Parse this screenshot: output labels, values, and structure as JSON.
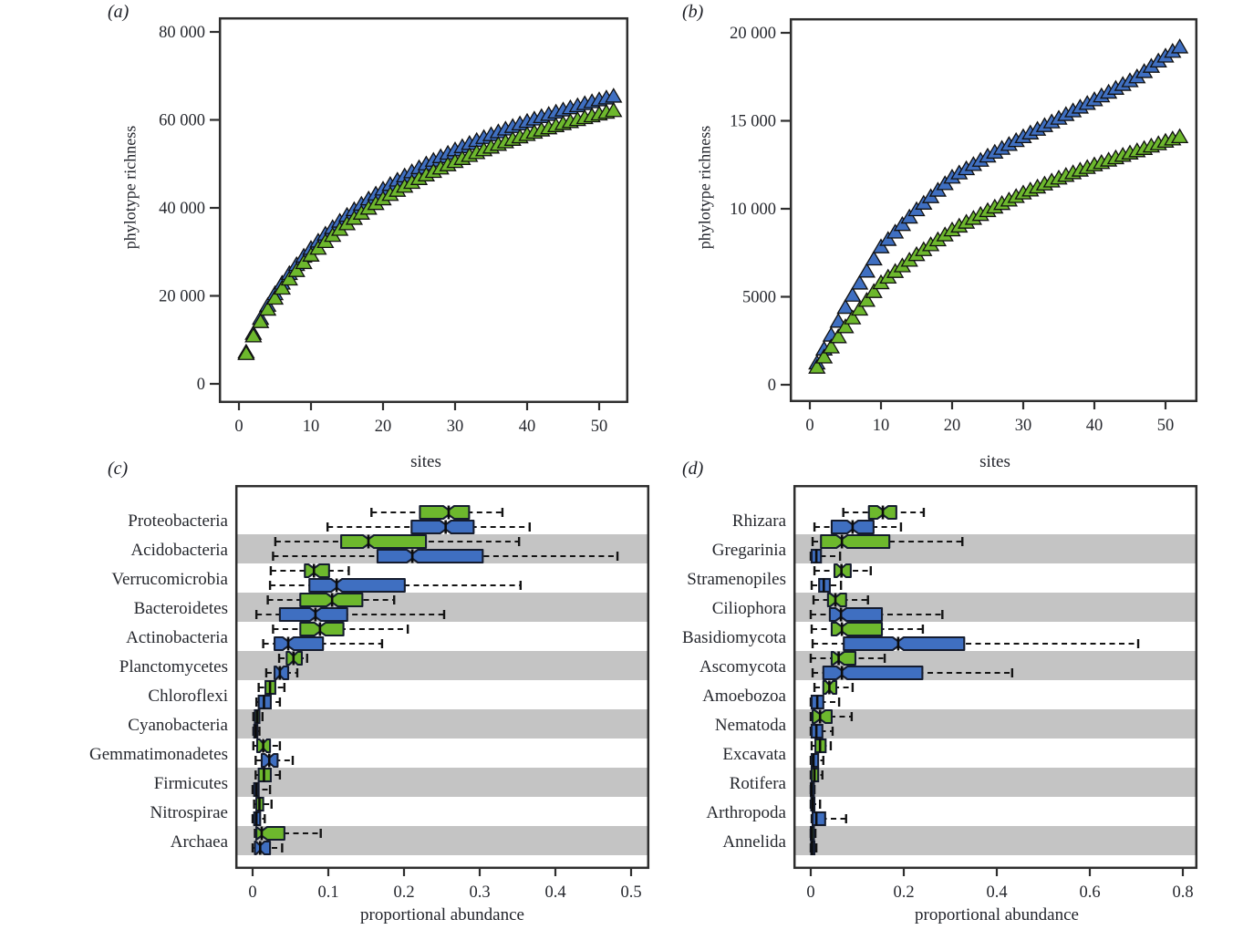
{
  "figure": {
    "background": "#ffffff",
    "colors": {
      "blue_fill": "#3f6fc1",
      "green_fill": "#6db station82d",
      "green_fill_fixed": "#6db82d",
      "stroke_dark": "#151c2e",
      "whisker": "#141414",
      "band_gray": "#c4c4c4",
      "frame": "#2e2e2e"
    }
  },
  "chart_data": [
    {
      "id": "a",
      "type": "scatter",
      "marker": "triangle",
      "panel_label": "(a)",
      "xlabel": "sites",
      "ylabel": "phylotype richness",
      "xlim": [
        0,
        56
      ],
      "ylim": [
        0,
        87000
      ],
      "x_ticks": [
        {
          "v": 0,
          "label": "0"
        },
        {
          "v": 10,
          "label": "10"
        },
        {
          "v": 20,
          "label": "20"
        },
        {
          "v": 30,
          "label": "30"
        },
        {
          "v": 40,
          "label": "40"
        },
        {
          "v": 50,
          "label": "50"
        }
      ],
      "y_ticks": [
        {
          "v": 0,
          "label": "0"
        },
        {
          "v": 20000,
          "label": "20 000"
        },
        {
          "v": 40000,
          "label": "40 000"
        },
        {
          "v": 60000,
          "label": "60 000"
        },
        {
          "v": 80000,
          "label": "80 000"
        }
      ],
      "x_start": 1,
      "series": [
        {
          "name": "blue",
          "color": "#3f6fc1",
          "y": [
            7250,
            11470,
            14910,
            17870,
            20500,
            22900,
            25090,
            27120,
            29030,
            30800,
            32450,
            34050,
            35530,
            36980,
            38320,
            39610,
            40840,
            42040,
            43160,
            44270,
            45320,
            46320,
            47280,
            48220,
            49130,
            50000,
            50830,
            51640,
            52430,
            53200,
            53930,
            54650,
            55340,
            56010,
            56650,
            57300,
            57920,
            58510,
            59100,
            59670,
            60210,
            60750,
            61260,
            61780,
            62270,
            62760,
            63230,
            63700,
            64140,
            64570,
            64990,
            65400
          ]
        },
        {
          "name": "green",
          "color": "#6db82d",
          "y": [
            6890,
            10900,
            14160,
            16980,
            19480,
            21760,
            23840,
            25760,
            27580,
            29260,
            30830,
            32350,
            33750,
            35130,
            36400,
            37630,
            38800,
            39940,
            41000,
            42060,
            43050,
            44000,
            44920,
            45810,
            46670,
            47500,
            48290,
            49060,
            49810,
            50540,
            51230,
            51920,
            52570,
            53210,
            53820,
            54440,
            55020,
            55580,
            56150,
            56690,
            57200,
            57710,
            58200,
            58690,
            59160,
            59620,
            60070,
            60520,
            60930,
            61340,
            61740,
            62130
          ]
        }
      ]
    },
    {
      "id": "b",
      "type": "scatter",
      "marker": "triangle",
      "panel_label": "(b)",
      "xlabel": "sites",
      "ylabel": "phylotype richness",
      "xlim": [
        0,
        56
      ],
      "ylim": [
        0,
        21000
      ],
      "x_ticks": [
        {
          "v": 0,
          "label": "0"
        },
        {
          "v": 10,
          "label": "10"
        },
        {
          "v": 20,
          "label": "20"
        },
        {
          "v": 30,
          "label": "30"
        },
        {
          "v": 40,
          "label": "40"
        },
        {
          "v": 50,
          "label": "50"
        }
      ],
      "y_ticks": [
        {
          "v": 0,
          "label": "0"
        },
        {
          "v": 5000,
          "label": "5000"
        },
        {
          "v": 10000,
          "label": "10 000"
        },
        {
          "v": 15000,
          "label": "15 000"
        },
        {
          "v": 20000,
          "label": "20 000"
        }
      ],
      "x_start": 1,
      "series": [
        {
          "name": "blue",
          "color": "#3f6fc1",
          "y": [
            1240,
            2030,
            2820,
            3610,
            4400,
            5090,
            5780,
            6460,
            7150,
            7840,
            8260,
            8680,
            9110,
            9530,
            9950,
            10320,
            10690,
            11060,
            11430,
            11800,
            12040,
            12280,
            12520,
            12760,
            13000,
            13220,
            13440,
            13660,
            13880,
            14100,
            14310,
            14520,
            14730,
            14940,
            15150,
            15360,
            15570,
            15780,
            15990,
            16200,
            16420,
            16630,
            16850,
            17070,
            17280,
            17500,
            17800,
            18100,
            18400,
            18680,
            18950,
            19200
          ]
        },
        {
          "name": "green",
          "color": "#6db82d",
          "y": [
            1000,
            1580,
            2150,
            2730,
            3300,
            3800,
            4300,
            4800,
            5300,
            5800,
            6120,
            6440,
            6760,
            7080,
            7400,
            7680,
            7960,
            8240,
            8520,
            8800,
            9020,
            9240,
            9460,
            9680,
            9900,
            10100,
            10300,
            10500,
            10700,
            10900,
            11070,
            11240,
            11410,
            11580,
            11750,
            11900,
            12050,
            12200,
            12350,
            12500,
            12630,
            12770,
            12900,
            13040,
            13170,
            13300,
            13430,
            13570,
            13700,
            13840,
            13970,
            14100
          ]
        }
      ]
    },
    {
      "id": "c",
      "type": "boxplot",
      "panel_label": "(c)",
      "xlabel": "proportional abundance",
      "xlim": [
        0,
        0.545
      ],
      "x_ticks": [
        {
          "v": 0,
          "label": "0"
        },
        {
          "v": 0.1,
          "label": "0.1"
        },
        {
          "v": 0.2,
          "label": "0.2"
        },
        {
          "v": 0.3,
          "label": "0.3"
        },
        {
          "v": 0.4,
          "label": "0.4"
        },
        {
          "v": 0.5,
          "label": "0.5"
        }
      ],
      "categories": [
        "Proteobacteria",
        "Acidobacteria",
        "Verrucomicrobia",
        "Bacteroidetes",
        "Actinobacteria",
        "Planctomycetes",
        "Chloroflexi",
        "Cyanobacteria",
        "Gemmatimonadetes",
        "Firmicutes",
        "Nitrospirae",
        "Archaea"
      ],
      "series": [
        {
          "name": "green",
          "color": "#6db82d",
          "stats": [
            [
              0.157,
              0.221,
              0.259,
              0.286,
              0.33
            ],
            [
              0.03,
              0.117,
              0.153,
              0.229,
              0.352
            ],
            [
              0.024,
              0.069,
              0.081,
              0.101,
              0.127
            ],
            [
              0.02,
              0.063,
              0.105,
              0.145,
              0.187
            ],
            [
              0.027,
              0.063,
              0.089,
              0.12,
              0.205
            ],
            [
              0.035,
              0.045,
              0.054,
              0.065,
              0.072
            ],
            [
              0.008,
              0.017,
              0.023,
              0.03,
              0.042
            ],
            [
              0.001,
              0.003,
              0.006,
              0.009,
              0.013
            ],
            [
              0.001,
              0.006,
              0.014,
              0.023,
              0.036
            ],
            [
              0.004,
              0.008,
              0.015,
              0.024,
              0.036
            ],
            [
              0.002,
              0.005,
              0.009,
              0.014,
              0.025
            ],
            [
              0.003,
              0.005,
              0.012,
              0.042,
              0.09
            ]
          ]
        },
        {
          "name": "blue",
          "color": "#3f6fc1",
          "stats": [
            [
              0.099,
              0.21,
              0.255,
              0.292,
              0.366
            ],
            [
              0.027,
              0.165,
              0.211,
              0.304,
              0.482
            ],
            [
              0.023,
              0.075,
              0.111,
              0.201,
              0.354
            ],
            [
              0.005,
              0.036,
              0.083,
              0.125,
              0.253
            ],
            [
              0.014,
              0.029,
              0.047,
              0.093,
              0.171
            ],
            [
              0.018,
              0.029,
              0.036,
              0.047,
              0.059
            ],
            [
              0.005,
              0.008,
              0.015,
              0.024,
              0.036
            ],
            [
              0.001,
              0.002,
              0.004,
              0.006,
              0.009
            ],
            [
              0.004,
              0.012,
              0.022,
              0.033,
              0.053
            ],
            [
              0.0,
              0.002,
              0.005,
              0.008,
              0.023
            ],
            [
              0.0,
              0.002,
              0.005,
              0.01,
              0.016
            ],
            [
              0.0,
              0.003,
              0.01,
              0.023,
              0.039
            ]
          ]
        }
      ]
    },
    {
      "id": "d",
      "type": "boxplot",
      "panel_label": "(d)",
      "xlabel": "proportional abundance",
      "xlim": [
        0,
        0.865
      ],
      "x_ticks": [
        {
          "v": 0,
          "label": "0"
        },
        {
          "v": 0.2,
          "label": "0.2"
        },
        {
          "v": 0.4,
          "label": "0.4"
        },
        {
          "v": 0.6,
          "label": "0.6"
        },
        {
          "v": 0.8,
          "label": "0.8"
        }
      ],
      "categories": [
        "Rhizara",
        "Gregarinia",
        "Stramenopiles",
        "Ciliophora",
        "Basidiomycota",
        "Ascomycota",
        "Amoebozoa",
        "Nematoda",
        "Excavata",
        "Rotifera",
        "Arthropoda",
        "Annelida"
      ],
      "series": [
        {
          "name": "green",
          "color": "#6db82d",
          "stats": [
            [
              0.07,
              0.125,
              0.155,
              0.184,
              0.243
            ],
            [
              0.004,
              0.022,
              0.067,
              0.169,
              0.326
            ],
            [
              0.008,
              0.051,
              0.066,
              0.086,
              0.129
            ],
            [
              0.006,
              0.037,
              0.053,
              0.076,
              0.123
            ],
            [
              0.002,
              0.045,
              0.067,
              0.153,
              0.241
            ],
            [
              0.0,
              0.045,
              0.06,
              0.096,
              0.159
            ],
            [
              0.008,
              0.027,
              0.04,
              0.055,
              0.09
            ],
            [
              0.0,
              0.004,
              0.02,
              0.045,
              0.088
            ],
            [
              0.002,
              0.01,
              0.02,
              0.032,
              0.043
            ],
            [
              0.0,
              0.002,
              0.008,
              0.016,
              0.025
            ],
            [
              0.0,
              0.001,
              0.004,
              0.008,
              0.02
            ],
            [
              0.0,
              0.0,
              0.002,
              0.005,
              0.01
            ]
          ]
        },
        {
          "name": "blue",
          "color": "#3f6fc1",
          "stats": [
            [
              0.008,
              0.045,
              0.09,
              0.135,
              0.194
            ],
            [
              0.0,
              0.002,
              0.012,
              0.022,
              0.063
            ],
            [
              0.002,
              0.018,
              0.028,
              0.041,
              0.065
            ],
            [
              0.0,
              0.041,
              0.065,
              0.153,
              0.283
            ],
            [
              0.004,
              0.071,
              0.188,
              0.33,
              0.704
            ],
            [
              0.004,
              0.027,
              0.067,
              0.24,
              0.433
            ],
            [
              0.0,
              0.002,
              0.014,
              0.027,
              0.061
            ],
            [
              0.0,
              0.002,
              0.012,
              0.025,
              0.047
            ],
            [
              0.0,
              0.002,
              0.006,
              0.016,
              0.027
            ],
            [
              0.0,
              0.0,
              0.002,
              0.005,
              0.008
            ],
            [
              0.002,
              0.004,
              0.012,
              0.031,
              0.076
            ],
            [
              0.0,
              0.001,
              0.003,
              0.006,
              0.012
            ]
          ]
        }
      ]
    }
  ]
}
